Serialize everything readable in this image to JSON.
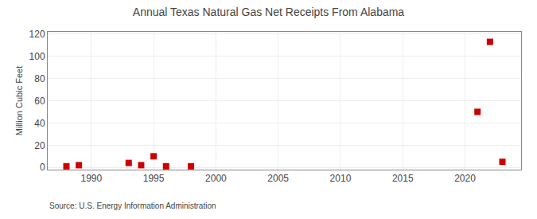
{
  "chart_data": {
    "type": "scatter",
    "title": "Annual Texas Natural Gas Net Receipts From Alabama",
    "ylabel": "Million Cubic Feet",
    "annotations": [
      "Source: U.S. Energy Information Administration"
    ],
    "x": [
      1988,
      1989,
      1993,
      1994,
      1995,
      1996,
      1998,
      2021,
      2022,
      2023
    ],
    "values": [
      1,
      2,
      4,
      2,
      10,
      1,
      1,
      50,
      113,
      5
    ],
    "color": "#cc0000",
    "marker": "square",
    "xlim": [
      1986.5,
      2024.5
    ],
    "ylim": [
      -2,
      122
    ],
    "xticks": [
      1990,
      1995,
      2000,
      2005,
      2010,
      2015,
      2020
    ],
    "yticks": [
      0,
      20,
      40,
      60,
      80,
      100,
      120
    ],
    "grid": true
  }
}
